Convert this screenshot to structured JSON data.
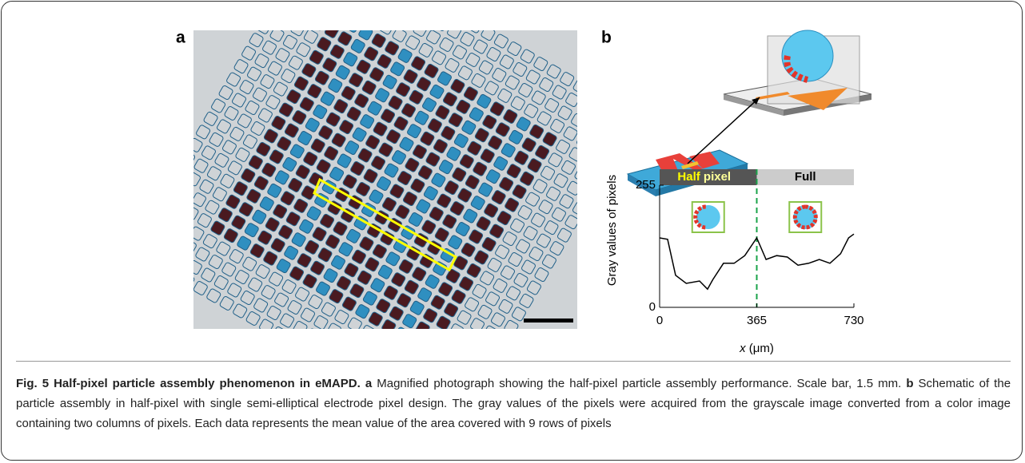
{
  "figure": {
    "panel_a": {
      "label": "a"
    },
    "panel_b": {
      "label": "b"
    }
  },
  "chart_data": {
    "type": "line",
    "x_label_var": "x",
    "x_label_unit": " (μm)",
    "y_label": "Gray values of pixels",
    "band": {
      "left_a": "Half",
      "left_b": " pixel",
      "right": "Full"
    },
    "xlim": [
      0,
      730
    ],
    "xticks": [
      0,
      365,
      730
    ],
    "ylim": [
      0,
      255
    ],
    "yticks": [
      0,
      255
    ],
    "divider_x": 365,
    "series": [
      {
        "color": "#000000",
        "x": [
          0,
          30,
          60,
          100,
          150,
          180,
          200,
          240,
          280,
          320,
          365,
          400,
          440,
          480,
          520,
          560,
          600,
          640,
          680,
          710,
          730
        ],
        "values": [
          145,
          142,
          67,
          50,
          55,
          38,
          58,
          92,
          92,
          108,
          145,
          100,
          108,
          105,
          88,
          92,
          100,
          92,
          112,
          145,
          153
        ]
      }
    ]
  },
  "caption": {
    "title": "Fig. 5 Half-pixel particle assembly phenomenon in eMAPD.",
    "parts": [
      {
        "label": "a",
        "text": "Magnified photograph showing the half-pixel particle assembly performance. Scale bar, 1.5 mm."
      },
      {
        "label": "b",
        "text": "Schematic of the particle assembly in half-pixel with single semi-elliptical electrode pixel design. The gray values of the pixels were acquired from the grayscale image converted from a color image containing two columns of pixels. Each data represents the mean value of the area covered with 9 rows of pixels"
      }
    ]
  }
}
